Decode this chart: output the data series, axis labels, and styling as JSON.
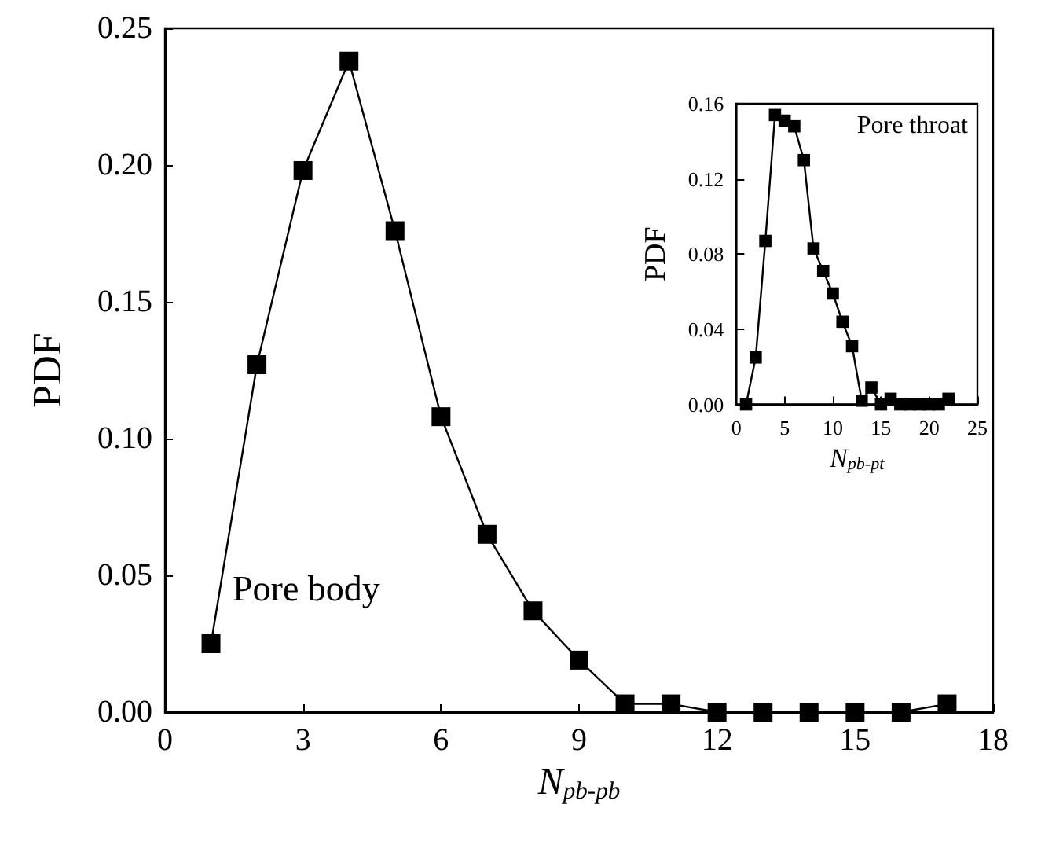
{
  "chart_data": [
    {
      "type": "line",
      "xlabel": "N$_{pb-pb}$",
      "ylabel": "PDF",
      "annotations": [
        "Pore body"
      ],
      "marker": "square",
      "line_style": "solid",
      "grid": false,
      "x": [
        1,
        2,
        3,
        4,
        5,
        6,
        7,
        8,
        9,
        10,
        11,
        12,
        13,
        14,
        15,
        16,
        17
      ],
      "series": [
        {
          "color": "#000000",
          "values": [
            0.025,
            0.127,
            0.198,
            0.238,
            0.176,
            0.108,
            0.065,
            0.037,
            0.019,
            0.003,
            0.003,
            0,
            0,
            0,
            0,
            0,
            0.003
          ]
        }
      ],
      "xlim": [
        0,
        18
      ],
      "xticks": [
        0,
        3,
        6,
        9,
        12,
        15,
        18
      ],
      "ylim": [
        0,
        0.25
      ],
      "yticks": [
        {
          "value": 0,
          "label": "0.00"
        },
        {
          "value": 0.05,
          "label": "0.05"
        },
        {
          "value": 0.1,
          "label": "0.10"
        },
        {
          "value": 0.15,
          "label": "0.15"
        },
        {
          "value": 0.2,
          "label": "0.20"
        },
        {
          "value": 0.25,
          "label": "0.25"
        }
      ]
    },
    {
      "type": "line",
      "xlabel": "N$_{pb-pt}$",
      "ylabel": "PDF",
      "annotations": [
        "Pore throat"
      ],
      "marker": "square",
      "line_style": "solid",
      "grid": false,
      "x": [
        1,
        2,
        3,
        4,
        5,
        6,
        7,
        8,
        9,
        10,
        11,
        12,
        13,
        14,
        15,
        16,
        17,
        18,
        19,
        20,
        21,
        22
      ],
      "series": [
        {
          "color": "#000000",
          "values": [
            0,
            0.025,
            0.087,
            0.154,
            0.151,
            0.148,
            0.13,
            0.083,
            0.071,
            0.059,
            0.044,
            0.031,
            0.002,
            0.009,
            0,
            0.003,
            0,
            0,
            0,
            0,
            0,
            0.003
          ]
        }
      ],
      "xlim": [
        0,
        25
      ],
      "xticks": [
        0,
        5,
        10,
        15,
        20,
        25
      ],
      "ylim": [
        0,
        0.16
      ],
      "yticks": [
        {
          "value": 0,
          "label": "0.00"
        },
        {
          "value": 0.04,
          "label": "0.04"
        },
        {
          "value": 0.08,
          "label": "0.08"
        },
        {
          "value": 0.12,
          "label": "0.12"
        },
        {
          "value": 0.16,
          "label": "0.16"
        }
      ]
    }
  ]
}
